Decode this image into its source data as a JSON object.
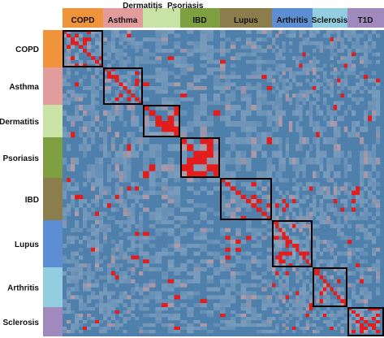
{
  "chart_data": {
    "type": "heatmap",
    "title": "",
    "xlabel": "",
    "ylabel": "",
    "categories": [
      "COPD",
      "Asthma",
      "Dermatitis",
      "Psoriasis",
      "IBD",
      "Lupus",
      "Arthritis",
      "Sclerosis",
      "T1D"
    ],
    "category_colors": [
      "#f0943c",
      "#e39c9c",
      "#c9e2a5",
      "#7fa040",
      "#8c7d4d",
      "#5d8ed3",
      "#93cde0",
      "#9f89bd",
      "#fbfbcd"
    ],
    "cell_color_low": "#4f7fab",
    "cell_color_high": "#e31c1c",
    "block_outline_color": "#000000",
    "legend": "none",
    "diagonal_blocks_outlined": true,
    "within_group_correlation": [
      0.45,
      0.35,
      0.6,
      0.7,
      0.3,
      0.45,
      0.35,
      0.55,
      0.5
    ]
  }
}
